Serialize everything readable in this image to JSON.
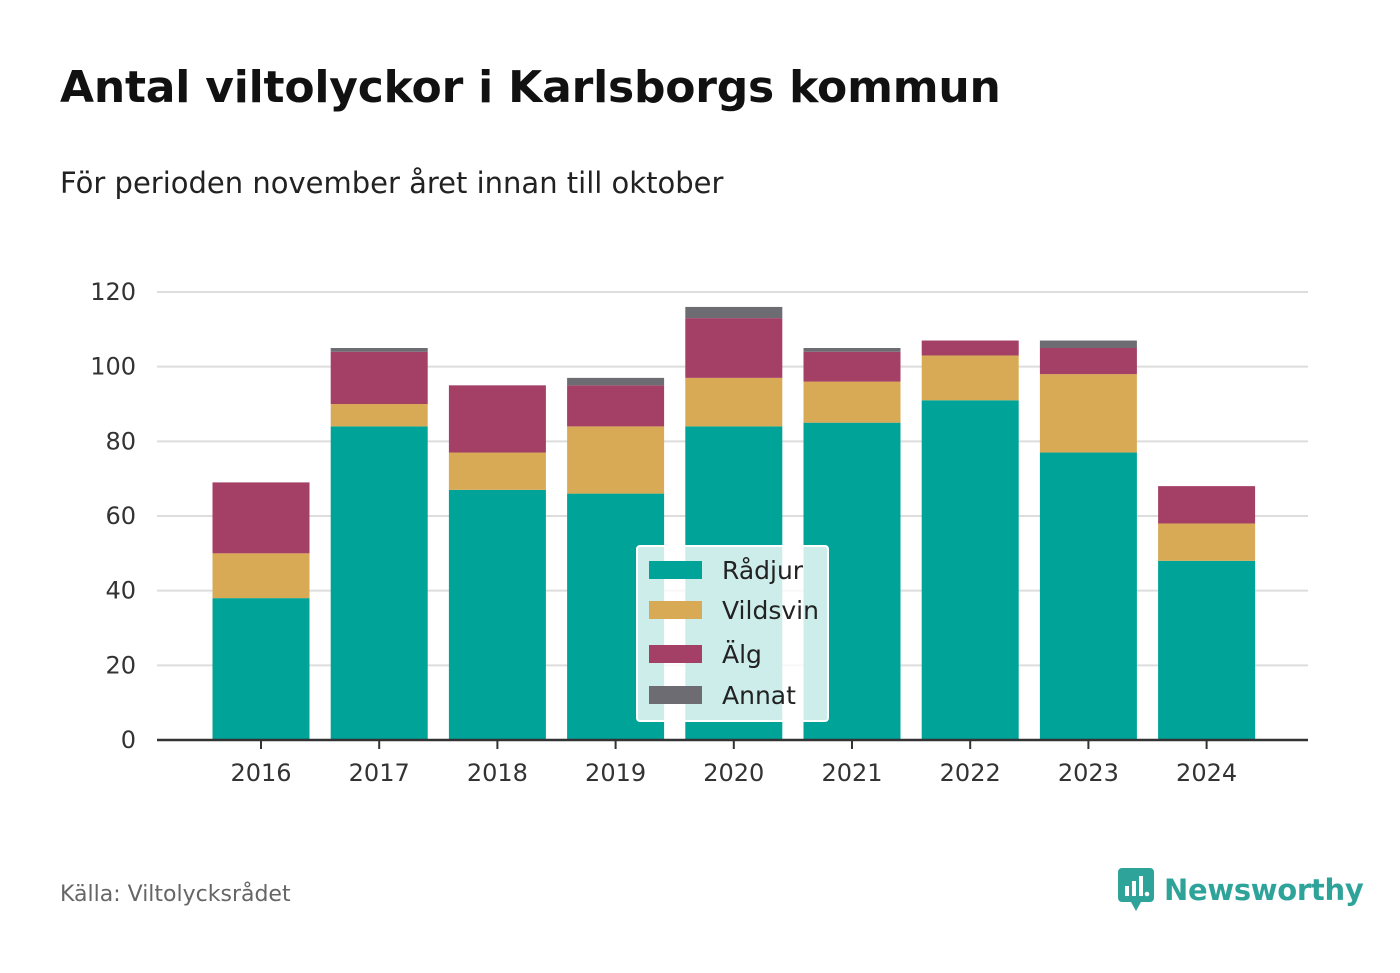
{
  "title": "Antal viltolyckor i Karlsborgs kommun",
  "subtitle": "För perioden november året innan till oktober",
  "source": "Källa: Viltolycksrådet",
  "brand": {
    "name": "Newsworthy",
    "icon": "newsworthy-logo-icon",
    "color": "#2ea39a"
  },
  "chart_data": {
    "type": "bar",
    "stacked": true,
    "title": "",
    "xlabel": "",
    "ylabel": "",
    "ylim": [
      0,
      120
    ],
    "yticks": [
      0,
      20,
      40,
      60,
      80,
      100,
      120
    ],
    "grid": true,
    "legend_position": "center",
    "categories": [
      "2016",
      "2017",
      "2018",
      "2019",
      "2020",
      "2021",
      "2022",
      "2023",
      "2024"
    ],
    "series": [
      {
        "name": "Rådjur",
        "color": "#00a398",
        "values": [
          38,
          84,
          67,
          66,
          84,
          85,
          91,
          77,
          48
        ]
      },
      {
        "name": "Vildsvin",
        "color": "#d9aa55",
        "values": [
          12,
          6,
          10,
          18,
          13,
          11,
          12,
          21,
          10
        ]
      },
      {
        "name": "Älg",
        "color": "#a43f66",
        "values": [
          19,
          14,
          18,
          11,
          16,
          8,
          4,
          7,
          10
        ]
      },
      {
        "name": "Annat",
        "color": "#6c6c72",
        "values": [
          0,
          1,
          0,
          2,
          3,
          1,
          0,
          2,
          0
        ]
      }
    ]
  }
}
